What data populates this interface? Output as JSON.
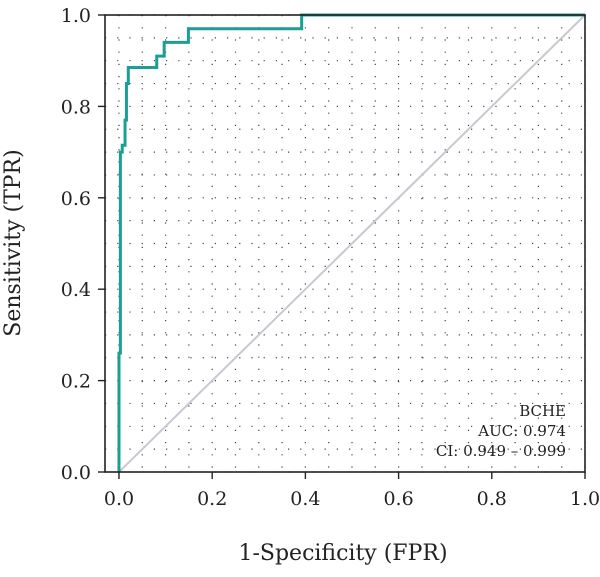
{
  "chart_data": {
    "type": "line",
    "title": "",
    "xlabel": "1-Specificity (FPR)",
    "ylabel": "Sensitivity (TPR)",
    "xlim": [
      -0.03,
      1.0
    ],
    "ylim": [
      0.0,
      1.0
    ],
    "xticks": [
      "0.0",
      "0.2",
      "0.4",
      "0.6",
      "0.8",
      "1.0"
    ],
    "yticks": [
      "0.0",
      "0.2",
      "0.4",
      "0.6",
      "0.8",
      "1.0"
    ],
    "grid": true,
    "grid_style": "dotted",
    "series": [
      {
        "name": "BCHE",
        "color": "#1b9e96",
        "x": [
          0.0,
          0.0,
          0.003,
          0.003,
          0.007,
          0.007,
          0.013,
          0.013,
          0.016,
          0.016,
          0.02,
          0.02,
          0.081,
          0.081,
          0.097,
          0.097,
          0.149,
          0.149,
          0.392,
          0.392,
          1.0
        ],
        "y": [
          0.0,
          0.26,
          0.26,
          0.7,
          0.7,
          0.715,
          0.715,
          0.77,
          0.77,
          0.85,
          0.85,
          0.885,
          0.885,
          0.91,
          0.91,
          0.94,
          0.94,
          0.97,
          0.97,
          1.0,
          1.0
        ]
      }
    ],
    "reference_line": {
      "x": [
        0.0,
        1.0
      ],
      "y": [
        0.0,
        1.0
      ],
      "color": "#c8c8d0"
    },
    "annotations": [
      "BCHE",
      "AUC: 0.974",
      "CI: 0.949 – 0.999"
    ]
  }
}
